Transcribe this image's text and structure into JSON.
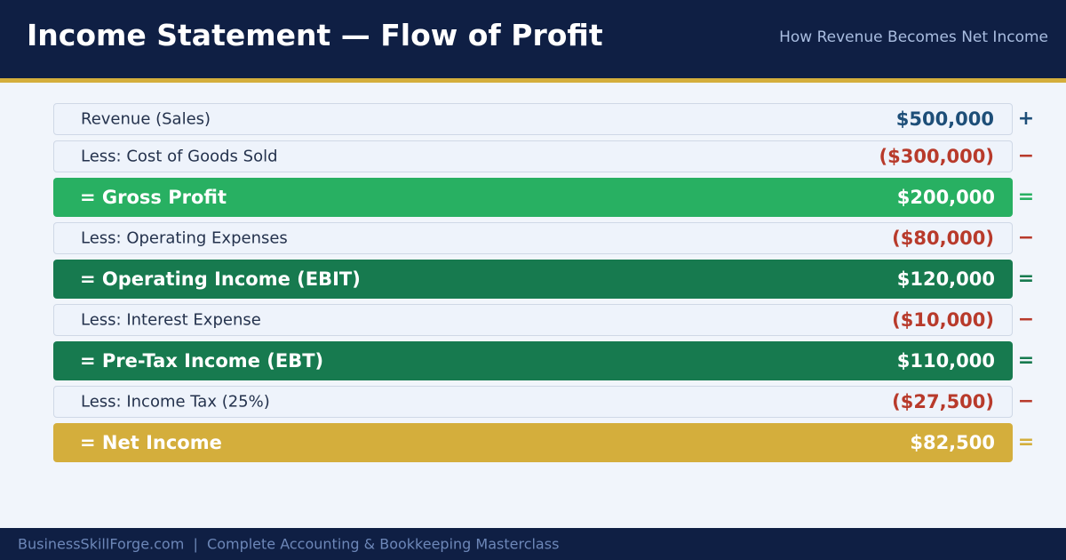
{
  "header": {
    "title": "Income Statement — Flow of Profit",
    "subtitle": "How Revenue Becomes Net Income"
  },
  "colors": {
    "header_bg": "#0f1f44",
    "accent_gold": "#d4ae3c",
    "revenue_blue": "#1d4e78",
    "deduction_red": "#b83a2b",
    "gross_profit_green": "#28b062",
    "income_dark_green": "#177a4f",
    "net_income_gold": "#d4ae3c"
  },
  "rows": [
    {
      "label": "Revenue (Sales)",
      "value": "$500,000",
      "operator": "+",
      "style": "plain",
      "value_color": "#1d4e78",
      "operator_color": "#1d4e78"
    },
    {
      "label": "Less: Cost of Goods Sold",
      "value": "($300,000)",
      "operator": "−",
      "style": "plain",
      "value_color": "#b83a2b",
      "operator_color": "#b83a2b"
    },
    {
      "label": "= Gross Profit",
      "value": "$200,000",
      "operator": "=",
      "style": "total",
      "fill_color": "#28b062",
      "operator_color": "#28b062"
    },
    {
      "label": "Less: Operating Expenses",
      "value": "($80,000)",
      "operator": "−",
      "style": "plain",
      "value_color": "#b83a2b",
      "operator_color": "#b83a2b"
    },
    {
      "label": "= Operating Income (EBIT)",
      "value": "$120,000",
      "operator": "=",
      "style": "total",
      "fill_color": "#177a4f",
      "operator_color": "#177a4f"
    },
    {
      "label": "Less: Interest Expense",
      "value": "($10,000)",
      "operator": "−",
      "style": "plain",
      "value_color": "#b83a2b",
      "operator_color": "#b83a2b"
    },
    {
      "label": "= Pre-Tax Income (EBT)",
      "value": "$110,000",
      "operator": "=",
      "style": "total",
      "fill_color": "#177a4f",
      "operator_color": "#177a4f"
    },
    {
      "label": "Less: Income Tax (25%)",
      "value": "($27,500)",
      "operator": "−",
      "style": "plain",
      "value_color": "#b83a2b",
      "operator_color": "#b83a2b"
    },
    {
      "label": "= Net Income",
      "value": "$82,500",
      "operator": "=",
      "style": "total",
      "fill_color": "#d4ae3c",
      "operator_color": "#d4ae3c"
    }
  ],
  "footer": {
    "text": "BusinessSkillForge.com  |  Complete Accounting & Bookkeeping Masterclass"
  }
}
